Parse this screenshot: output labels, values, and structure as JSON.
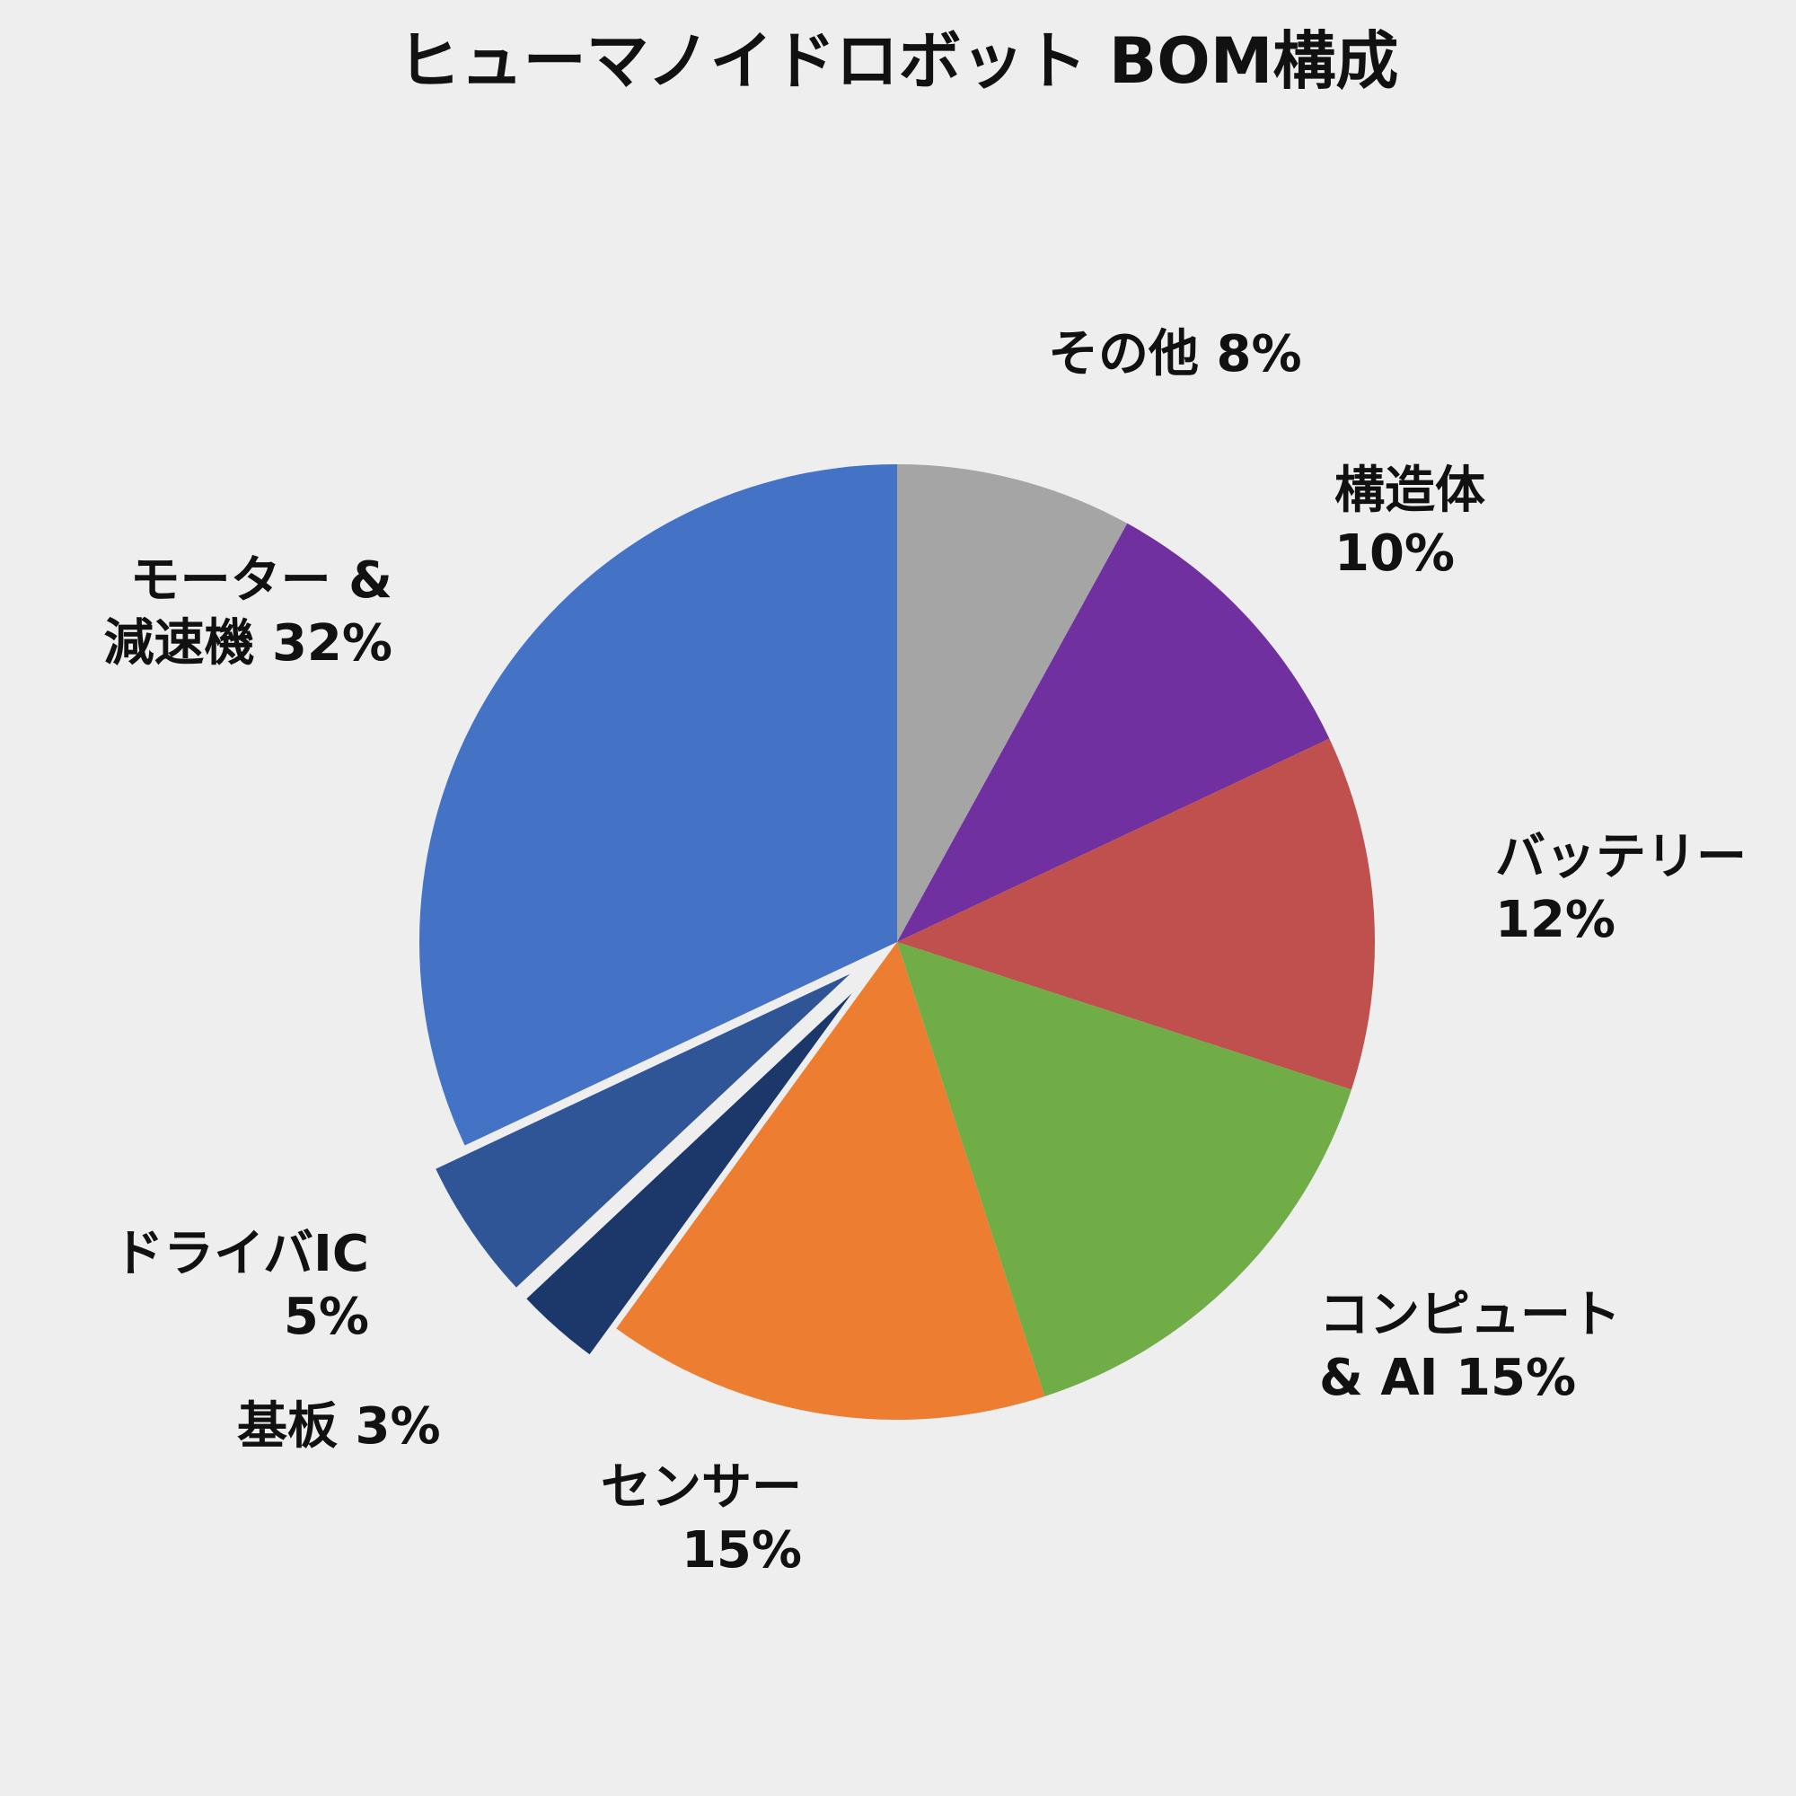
{
  "chart_data": {
    "type": "pie",
    "title": "ヒューマノイドロボット BOM構成",
    "categories": [
      "その他",
      "構造体",
      "バッテリー",
      "コンピュート & AI",
      "センサー",
      "基板",
      "ドライバIC",
      "モーター & 減速機"
    ],
    "values": [
      8,
      10,
      12,
      15,
      15,
      3,
      5,
      32
    ],
    "value_labels": [
      "8%",
      "10%",
      "12%",
      "15%",
      "15%",
      "3%",
      "5%",
      "32%"
    ],
    "colors": [
      "#a5a5a5",
      "#7030a0",
      "#c0504d",
      "#70ad47",
      "#ed7d31",
      "#1c3769",
      "#2f5597",
      "#4472c4"
    ],
    "explode": [
      false,
      false,
      false,
      false,
      false,
      true,
      true,
      false
    ]
  }
}
